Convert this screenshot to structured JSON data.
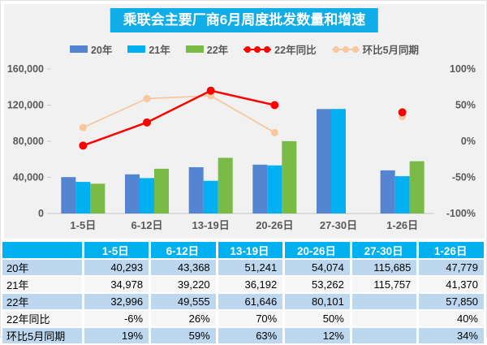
{
  "chart": {
    "title": "乘联会主要厂商6月周度批发数量和增速"
  },
  "colors": {
    "banner_bg": "#10ade8",
    "panel_bg": "#f1f1f2",
    "table_header_bg": "#00b0f0",
    "table_row_blue": "#bdd7ee",
    "table_row_light": "#f6f6f6",
    "axis_text": "#595959",
    "bar_2020": "#5585d0",
    "bar_2021": "#00b0f0",
    "bar_2022": "#79bb45",
    "line_yoy": "#ff0000",
    "line_mom": "#f7c79e"
  },
  "chart_data": {
    "type": "bar+line combo",
    "categories": [
      "1-5日",
      "6-12日",
      "13-19日",
      "20-26日",
      "27-30日",
      "1-26日"
    ],
    "bar_series": [
      {
        "name": "20年",
        "color": "#5585d0",
        "values": [
          40293,
          43368,
          51241,
          54074,
          115685,
          47779
        ]
      },
      {
        "name": "21年",
        "color": "#00b0f0",
        "values": [
          34978,
          39220,
          36192,
          53262,
          115757,
          41370
        ]
      },
      {
        "name": "22年",
        "color": "#79bb45",
        "values": [
          32996,
          49555,
          61646,
          80101,
          null,
          57850
        ]
      }
    ],
    "line_series": [
      {
        "name": "环比5月同期",
        "color": "#f7c79e",
        "unit": "%",
        "values": [
          19,
          59,
          63,
          12,
          null,
          34
        ]
      },
      {
        "name": "22年同比",
        "color": "#ff0000",
        "unit": "%",
        "values": [
          -6,
          26,
          70,
          50,
          null,
          40
        ]
      }
    ],
    "legend_order": [
      "20年",
      "21年",
      "22年",
      "22年同比",
      "环比5月同期"
    ],
    "left_axis": {
      "min": 0,
      "max": 160000,
      "tick_labels": [
        "0",
        "40,000",
        "80,000",
        "120,000",
        "160,000"
      ]
    },
    "right_axis": {
      "min": -100,
      "max": 100,
      "tick_labels": [
        "-100%",
        "-50%",
        "0%",
        "50%",
        "100%"
      ]
    },
    "grid": false,
    "legend_position": "top-center"
  },
  "table": {
    "columns": [
      "",
      "1-5日",
      "6-12日",
      "13-19日",
      "20-26日",
      "27-30日",
      "1-26日"
    ],
    "rows": [
      {
        "label": "20年",
        "values": [
          "40,293",
          "43,368",
          "51,241",
          "54,074",
          "115,685",
          "47,779"
        ]
      },
      {
        "label": "21年",
        "values": [
          "34,978",
          "39,220",
          "36,192",
          "53,262",
          "115,757",
          "41,370"
        ]
      },
      {
        "label": "22年",
        "values": [
          "32,996",
          "49,555",
          "61,646",
          "80,101",
          "",
          "57,850"
        ]
      },
      {
        "label": "22年同比",
        "values": [
          "-6%",
          "26%",
          "70%",
          "50%",
          "",
          "40%"
        ]
      },
      {
        "label": "环比5月同期",
        "values": [
          "19%",
          "59%",
          "63%",
          "12%",
          "",
          "34%"
        ]
      }
    ]
  }
}
